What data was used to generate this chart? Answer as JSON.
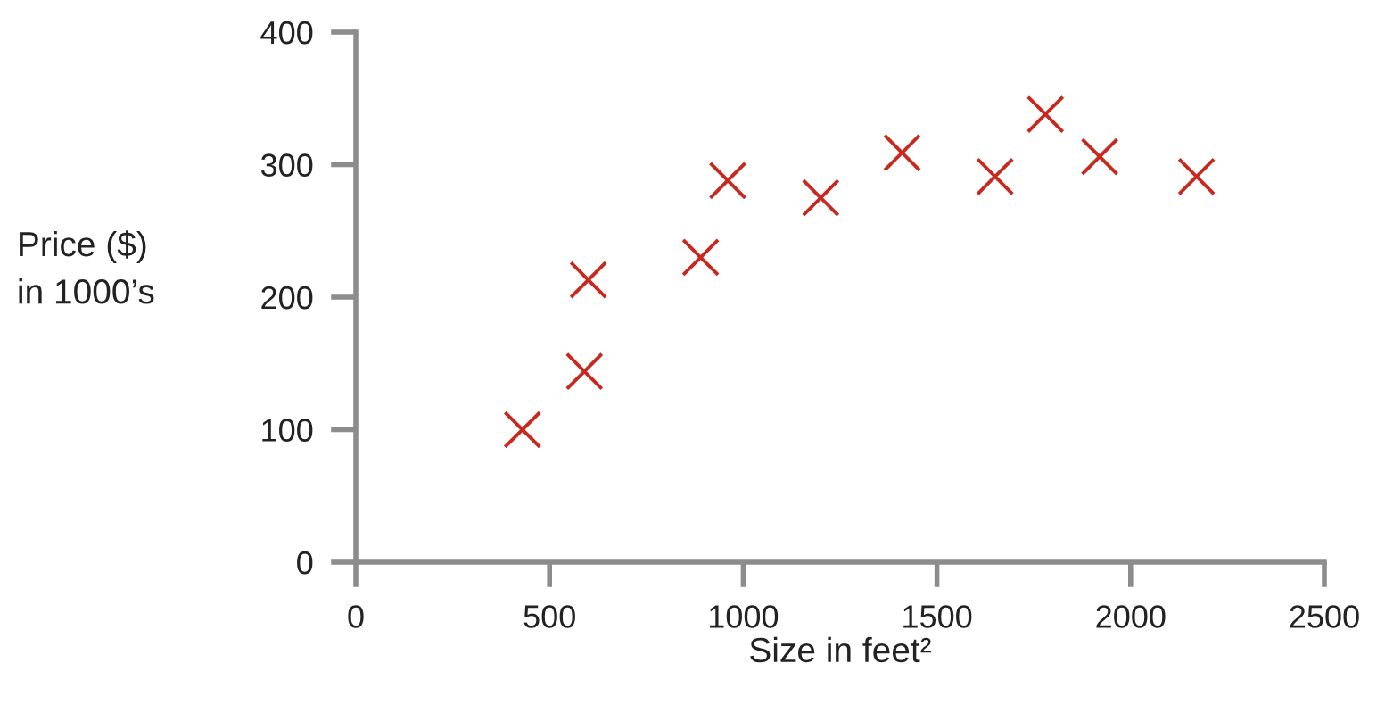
{
  "chart_data": {
    "type": "scatter",
    "xlabel": "Size in feet²",
    "ylabel": "Price ($)\nin 1000’s",
    "x": [
      430,
      590,
      600,
      890,
      960,
      1200,
      1410,
      1650,
      1780,
      1920,
      2170
    ],
    "values": [
      100,
      144,
      213,
      230,
      288,
      275,
      309,
      291,
      338,
      306,
      291
    ],
    "color": "#c8281e",
    "marker": "cross",
    "grid": false,
    "xlim": [
      0,
      2500
    ],
    "xticks": [
      0,
      500,
      1000,
      1500,
      2000,
      2500
    ],
    "ylim": [
      0,
      400
    ],
    "yticks": [
      0,
      100,
      200,
      300,
      400
    ]
  }
}
